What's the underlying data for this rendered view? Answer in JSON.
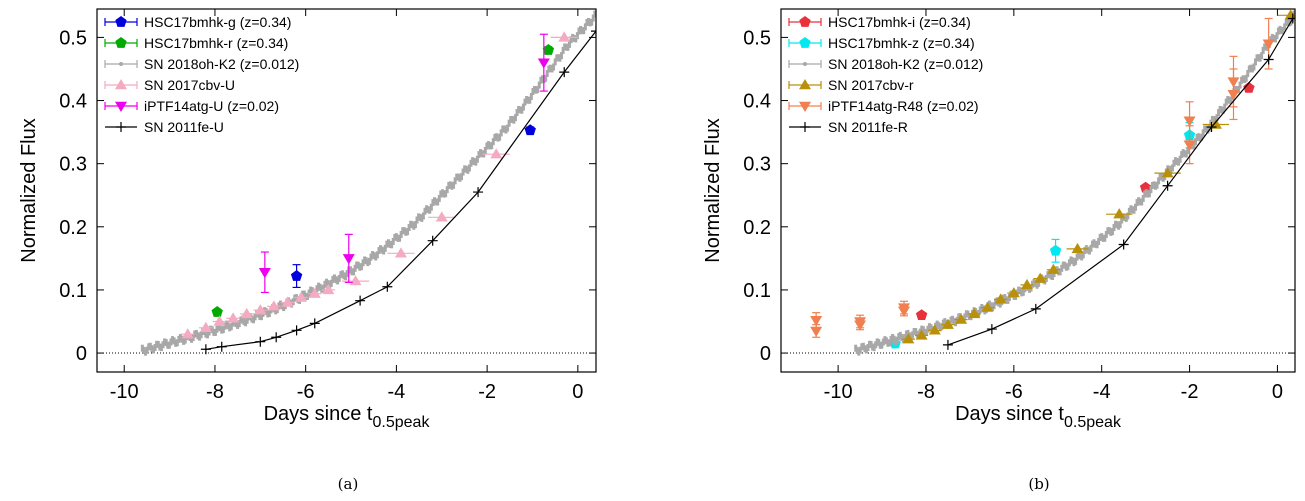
{
  "chart_data": [
    {
      "type": "scatter",
      "xlabel_main": "Days since t",
      "xlabel_sub": "0.5peak",
      "ylabel": "Normalized Flux",
      "xlim": [
        -10.6,
        0.4
      ],
      "ylim": [
        -0.03,
        0.545
      ],
      "xticks": [
        "-10",
        "-8",
        "-6",
        "-4",
        "-2",
        "0"
      ],
      "xtick_values": [
        -10,
        -8,
        -6,
        -4,
        -2,
        0
      ],
      "yticks": [
        "0",
        "0.1",
        "0.2",
        "0.3",
        "0.4",
        "0.5"
      ],
      "ytick_values": [
        0,
        0.1,
        0.2,
        0.3,
        0.4,
        0.5
      ],
      "zero_line": true,
      "legend_position": "top-left",
      "caption": "(a)",
      "series": [
        {
          "name": "HSC17bmhk-g (z=0.34)",
          "color": "#0000dd",
          "marker": "pentagon",
          "line": false,
          "points": [
            {
              "x": -6.2,
              "y": 0.122,
              "yerr": 0.018
            },
            {
              "x": -1.05,
              "y": 0.353,
              "yerr": 0.005
            }
          ]
        },
        {
          "name": "HSC17bmhk-r (z=0.34)",
          "color": "#00aa00",
          "marker": "pentagon",
          "line": false,
          "points": [
            {
              "x": -7.95,
              "y": 0.065,
              "yerr": 0.004
            },
            {
              "x": -0.65,
              "y": 0.48,
              "yerr": 0.005
            }
          ]
        },
        {
          "name": "SN 2018oh-K2 (z=0.012)",
          "color": "#a8a8a8",
          "marker": "dot",
          "line": false,
          "dense": true,
          "curve": [
            [
              -9.6,
              0.004
            ],
            [
              -9.2,
              0.012
            ],
            [
              -8.6,
              0.024
            ],
            [
              -8.0,
              0.036
            ],
            [
              -7.4,
              0.05
            ],
            [
              -6.8,
              0.066
            ],
            [
              -6.2,
              0.085
            ],
            [
              -5.6,
              0.106
            ],
            [
              -5.0,
              0.13
            ],
            [
              -4.6,
              0.148
            ],
            [
              -4.2,
              0.17
            ],
            [
              -3.6,
              0.205
            ],
            [
              -3.0,
              0.25
            ],
            [
              -2.6,
              0.28
            ],
            [
              -2.0,
              0.325
            ],
            [
              -1.6,
              0.355
            ],
            [
              -1.0,
              0.41
            ],
            [
              -0.6,
              0.45
            ],
            [
              -0.2,
              0.49
            ],
            [
              0.4,
              0.535
            ]
          ]
        },
        {
          "name": "SN 2017cbv-U",
          "color": "#f4aac0",
          "marker": "triangle-up",
          "line": false,
          "points": [
            {
              "x": -8.6,
              "y": 0.03,
              "xerr": 0.15
            },
            {
              "x": -8.2,
              "y": 0.04,
              "xerr": 0.15
            },
            {
              "x": -7.9,
              "y": 0.05,
              "xerr": 0.15
            },
            {
              "x": -7.6,
              "y": 0.055,
              "xerr": 0.15
            },
            {
              "x": -7.3,
              "y": 0.062,
              "xerr": 0.15
            },
            {
              "x": -7.0,
              "y": 0.068,
              "xerr": 0.15
            },
            {
              "x": -6.7,
              "y": 0.074,
              "xerr": 0.15
            },
            {
              "x": -6.4,
              "y": 0.08,
              "xerr": 0.15
            },
            {
              "x": -6.1,
              "y": 0.088,
              "xerr": 0.15
            },
            {
              "x": -5.8,
              "y": 0.094,
              "xerr": 0.15
            },
            {
              "x": -5.5,
              "y": 0.1,
              "xerr": 0.15
            },
            {
              "x": -4.9,
              "y": 0.114,
              "xerr": 0.3
            },
            {
              "x": -3.9,
              "y": 0.158,
              "xerr": 0.3
            },
            {
              "x": -3.0,
              "y": 0.215,
              "xerr": 0.3
            },
            {
              "x": -1.8,
              "y": 0.315,
              "xerr": 0.3
            },
            {
              "x": -0.3,
              "y": 0.5,
              "xerr": 0.3
            }
          ]
        },
        {
          "name": "iPTF14atg-U (z=0.02)",
          "color": "#ee00ee",
          "marker": "triangle-down",
          "line": false,
          "points": [
            {
              "x": -6.9,
              "y": 0.128,
              "yerr": 0.032
            },
            {
              "x": -5.05,
              "y": 0.15,
              "yerr": 0.038
            },
            {
              "x": -0.75,
              "y": 0.46,
              "yerr": 0.045
            }
          ]
        },
        {
          "name": "SN 2011fe-U",
          "color": "#000000",
          "marker": "plus",
          "line": true,
          "points": [
            {
              "x": -8.2,
              "y": 0.006
            },
            {
              "x": -7.85,
              "y": 0.01
            },
            {
              "x": -7.0,
              "y": 0.018
            },
            {
              "x": -6.65,
              "y": 0.025
            },
            {
              "x": -6.2,
              "y": 0.036
            },
            {
              "x": -5.8,
              "y": 0.047
            },
            {
              "x": -4.8,
              "y": 0.083
            },
            {
              "x": -4.2,
              "y": 0.105
            },
            {
              "x": -3.2,
              "y": 0.178
            },
            {
              "x": -2.2,
              "y": 0.255
            },
            {
              "x": -0.3,
              "y": 0.445
            },
            {
              "x": 0.4,
              "y": 0.51
            }
          ]
        }
      ]
    },
    {
      "type": "scatter",
      "xlabel_main": "Days since t",
      "xlabel_sub": "0.5peak",
      "ylabel": "Normalized Flux",
      "xlim": [
        -11.3,
        0.4
      ],
      "ylim": [
        -0.03,
        0.545
      ],
      "xticks": [
        "-10",
        "-8",
        "-6",
        "-4",
        "-2",
        "0"
      ],
      "xtick_values": [
        -10,
        -8,
        -6,
        -4,
        -2,
        0
      ],
      "yticks": [
        "0",
        "0.1",
        "0.2",
        "0.3",
        "0.4",
        "0.5"
      ],
      "ytick_values": [
        0,
        0.1,
        0.2,
        0.3,
        0.4,
        0.5
      ],
      "zero_line": true,
      "legend_position": "top-left",
      "caption": "(b)",
      "series": [
        {
          "name": "HSC17bmhk-i (z=0.34)",
          "color": "#e8313a",
          "marker": "pentagon",
          "line": false,
          "points": [
            {
              "x": -8.1,
              "y": 0.06,
              "yerr": 0.003
            },
            {
              "x": -3.0,
              "y": 0.262,
              "yerr": 0.003
            },
            {
              "x": -0.65,
              "y": 0.42,
              "yerr": 0.003
            }
          ]
        },
        {
          "name": "HSC17bmhk-z (z=0.34)",
          "color": "#00e8f0",
          "marker": "pentagon",
          "line": false,
          "points": [
            {
              "x": -8.7,
              "y": 0.015,
              "yerr": 0.004
            },
            {
              "x": -5.05,
              "y": 0.162,
              "yerr": 0.018
            },
            {
              "x": -2.0,
              "y": 0.345,
              "yerr": 0.02
            }
          ]
        },
        {
          "name": "SN 2018oh-K2 (z=0.012)",
          "color": "#a8a8a8",
          "marker": "dot",
          "line": false,
          "dense": true,
          "curve": [
            [
              -9.6,
              0.004
            ],
            [
              -9.2,
              0.012
            ],
            [
              -8.6,
              0.024
            ],
            [
              -8.0,
              0.036
            ],
            [
              -7.4,
              0.05
            ],
            [
              -6.8,
              0.066
            ],
            [
              -6.2,
              0.085
            ],
            [
              -5.6,
              0.106
            ],
            [
              -5.0,
              0.13
            ],
            [
              -4.6,
              0.148
            ],
            [
              -4.2,
              0.17
            ],
            [
              -3.6,
              0.205
            ],
            [
              -3.0,
              0.25
            ],
            [
              -2.6,
              0.28
            ],
            [
              -2.0,
              0.325
            ],
            [
              -1.6,
              0.355
            ],
            [
              -1.0,
              0.41
            ],
            [
              -0.6,
              0.45
            ],
            [
              -0.2,
              0.49
            ],
            [
              0.4,
              0.535
            ]
          ]
        },
        {
          "name": "SN 2017cbv-r",
          "color": "#b8900a",
          "marker": "triangle-up",
          "line": false,
          "points": [
            {
              "x": -8.4,
              "y": 0.022,
              "xerr": 0.15
            },
            {
              "x": -8.1,
              "y": 0.028,
              "xerr": 0.15
            },
            {
              "x": -7.8,
              "y": 0.036,
              "xerr": 0.15
            },
            {
              "x": -7.5,
              "y": 0.045,
              "xerr": 0.15
            },
            {
              "x": -7.2,
              "y": 0.053,
              "xerr": 0.15
            },
            {
              "x": -6.9,
              "y": 0.062,
              "xerr": 0.15
            },
            {
              "x": -6.6,
              "y": 0.072,
              "xerr": 0.15
            },
            {
              "x": -6.3,
              "y": 0.085,
              "xerr": 0.15
            },
            {
              "x": -6.0,
              "y": 0.095,
              "xerr": 0.15
            },
            {
              "x": -5.7,
              "y": 0.108,
              "xerr": 0.15
            },
            {
              "x": -5.4,
              "y": 0.118,
              "xerr": 0.15
            },
            {
              "x": -5.1,
              "y": 0.132,
              "xerr": 0.15
            },
            {
              "x": -4.55,
              "y": 0.165,
              "xerr": 0.25
            },
            {
              "x": -3.6,
              "y": 0.22,
              "xerr": 0.3
            },
            {
              "x": -2.5,
              "y": 0.285,
              "xerr": 0.3
            },
            {
              "x": -1.4,
              "y": 0.362,
              "xerr": 0.3
            },
            {
              "x": 0.3,
              "y": 0.535,
              "xerr": 0.3
            }
          ]
        },
        {
          "name": "iPTF14atg-R48 (z=0.02)",
          "color": "#f08050",
          "marker": "triangle-down",
          "line": false,
          "points": [
            {
              "x": -10.5,
              "y": 0.052,
              "yerr": 0.012
            },
            {
              "x": -10.5,
              "y": 0.035,
              "yerr": 0.01
            },
            {
              "x": -9.5,
              "y": 0.05,
              "yerr": 0.01
            },
            {
              "x": -9.5,
              "y": 0.045,
              "yerr": 0.008
            },
            {
              "x": -8.5,
              "y": 0.072,
              "yerr": 0.01
            },
            {
              "x": -8.5,
              "y": 0.067,
              "yerr": 0.008
            },
            {
              "x": -2.0,
              "y": 0.368,
              "yerr": 0.03
            },
            {
              "x": -2.0,
              "y": 0.33,
              "yerr": 0.03
            },
            {
              "x": -1.0,
              "y": 0.43,
              "yerr": 0.04
            },
            {
              "x": -1.0,
              "y": 0.41,
              "yerr": 0.04
            },
            {
              "x": -0.2,
              "y": 0.49,
              "yerr": 0.04
            }
          ]
        },
        {
          "name": "SN 2011fe-R",
          "color": "#000000",
          "marker": "plus",
          "line": true,
          "points": [
            {
              "x": -7.5,
              "y": 0.013
            },
            {
              "x": -6.5,
              "y": 0.038
            },
            {
              "x": -5.5,
              "y": 0.07
            },
            {
              "x": -3.5,
              "y": 0.172
            },
            {
              "x": -2.5,
              "y": 0.265
            },
            {
              "x": -1.5,
              "y": 0.358
            },
            {
              "x": -0.2,
              "y": 0.465
            },
            {
              "x": 0.35,
              "y": 0.53
            }
          ]
        }
      ]
    }
  ]
}
